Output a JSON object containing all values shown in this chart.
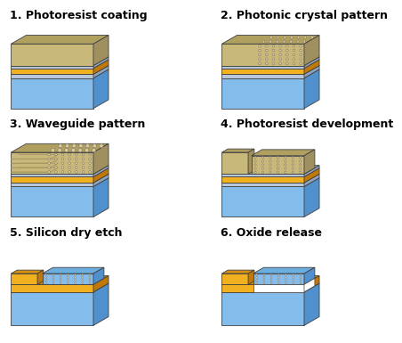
{
  "titles": [
    "1. Photoresist coating",
    "2. Photonic crystal pattern",
    "3. Waveguide pattern",
    "4. Photoresist development",
    "5. Silicon dry etch",
    "6. Oxide release"
  ],
  "title_fontsize": 9,
  "bg_color": "#ffffff",
  "colors": {
    "blue_body": "#84BCEC",
    "blue_top": "#6AAEE0",
    "blue_side": "#5090CC",
    "gold": "#F0B020",
    "gold_top": "#D89010",
    "gold_side": "#C07808",
    "tan": "#C8B87A",
    "tan_top": "#B0A060",
    "tan_side": "#A09060",
    "gray_thin": "#B8C8DC",
    "gray_thin_top": "#A0B4CC",
    "gray_thin_side": "#90A4BC",
    "circle_bg": "#D8CCA0",
    "circle_edge": "#807060",
    "white": "#FFFFFF",
    "black": "#000000"
  }
}
